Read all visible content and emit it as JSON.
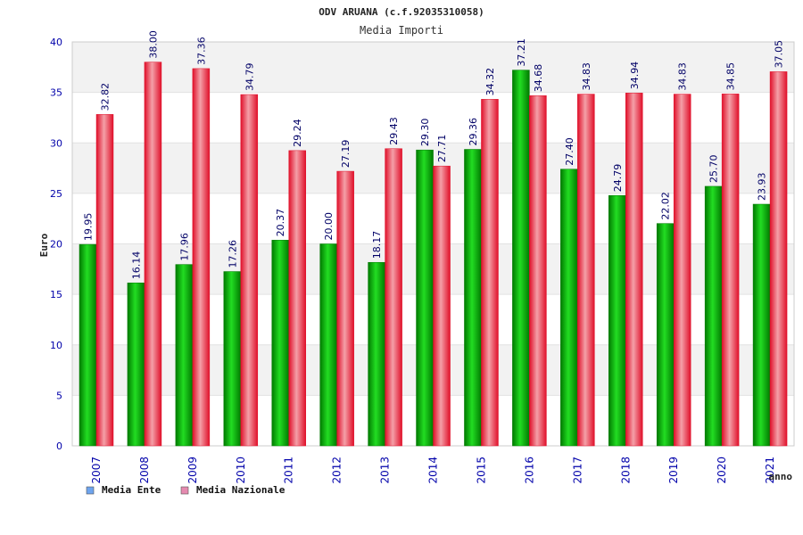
{
  "chart_data": {
    "type": "bar",
    "title": "ODV ARUANA (c.f.92035310058)",
    "subtitle": "Media Importi",
    "xlabel": "anno",
    "ylabel": "Euro",
    "ylim": [
      0,
      40
    ],
    "yticks": [
      "0",
      "5",
      "10",
      "15",
      "20",
      "25",
      "30",
      "35",
      "40"
    ],
    "grid": true,
    "categories": [
      "2007",
      "2008",
      "2009",
      "2010",
      "2011",
      "2012",
      "2013",
      "2014",
      "2015",
      "2016",
      "2017",
      "2018",
      "2019",
      "2020",
      "2021"
    ],
    "series": [
      {
        "name": "Media Ente",
        "values": [
          19.95,
          16.14,
          17.96,
          17.26,
          20.37,
          20.0,
          18.17,
          29.3,
          29.36,
          37.21,
          27.4,
          24.79,
          22.02,
          25.7,
          23.93
        ],
        "labels": [
          "19.95",
          "16.14",
          "17.96",
          "17.26",
          "20.37",
          "20.00",
          "18.17",
          "29.30",
          "29.36",
          "37.21",
          "27.40",
          "24.79",
          "22.02",
          "25.70",
          "23.93"
        ]
      },
      {
        "name": "Media Nazionale",
        "values": [
          32.82,
          38.0,
          37.36,
          34.79,
          29.24,
          27.19,
          29.43,
          27.71,
          34.32,
          34.68,
          34.83,
          34.94,
          34.83,
          34.85,
          37.05
        ],
        "labels": [
          "32.82",
          "38.00",
          "37.36",
          "34.79",
          "29.24",
          "27.19",
          "29.43",
          "27.71",
          "34.32",
          "34.68",
          "34.83",
          "34.94",
          "34.83",
          "34.85",
          "37.05"
        ]
      }
    ],
    "legend": {
      "position": "bottom-left"
    },
    "colors": {
      "ente_dark": "#007a00",
      "ente_light": "#22dd22",
      "naz_dark": "#e0102a",
      "naz_light": "#f4a0a8",
      "legend_ente": "#6ea4ee",
      "legend_naz": "#e58ab0",
      "axis_text": "#0000aa",
      "band": "#f2f2f2"
    }
  }
}
